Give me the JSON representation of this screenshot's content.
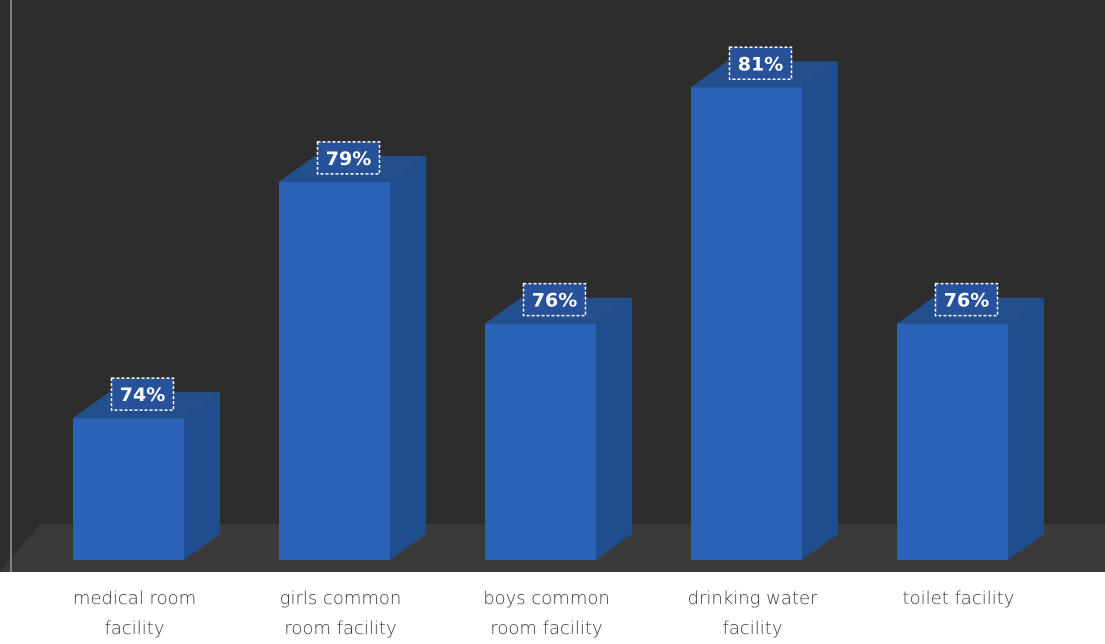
{
  "chart_data": {
    "type": "bar",
    "style": "3d-column",
    "categories": [
      "medical room\nfacility",
      "girls common\nroom facility",
      "boys common\nroom facility",
      "drinking water\nfacility",
      "toilet facility"
    ],
    "values": [
      74,
      79,
      76,
      81,
      76
    ],
    "data_labels": [
      "74%",
      "79%",
      "76%",
      "81%",
      "76%"
    ],
    "title": "",
    "xlabel": "",
    "ylabel": "",
    "ylim": [
      71,
      82
    ],
    "grid": false,
    "legend": "none"
  },
  "colors": {
    "plot_background": "#2d2d2d",
    "floor": "#3a3a3a",
    "bar_front": "#2a62b8",
    "bar_side": "#1f4d8e",
    "bar_top": "#234f8c",
    "label_box": "#275299",
    "label_text": "#ffffff",
    "axis_text": "#3a3a3a",
    "axis_line": "#9a9a9a"
  }
}
